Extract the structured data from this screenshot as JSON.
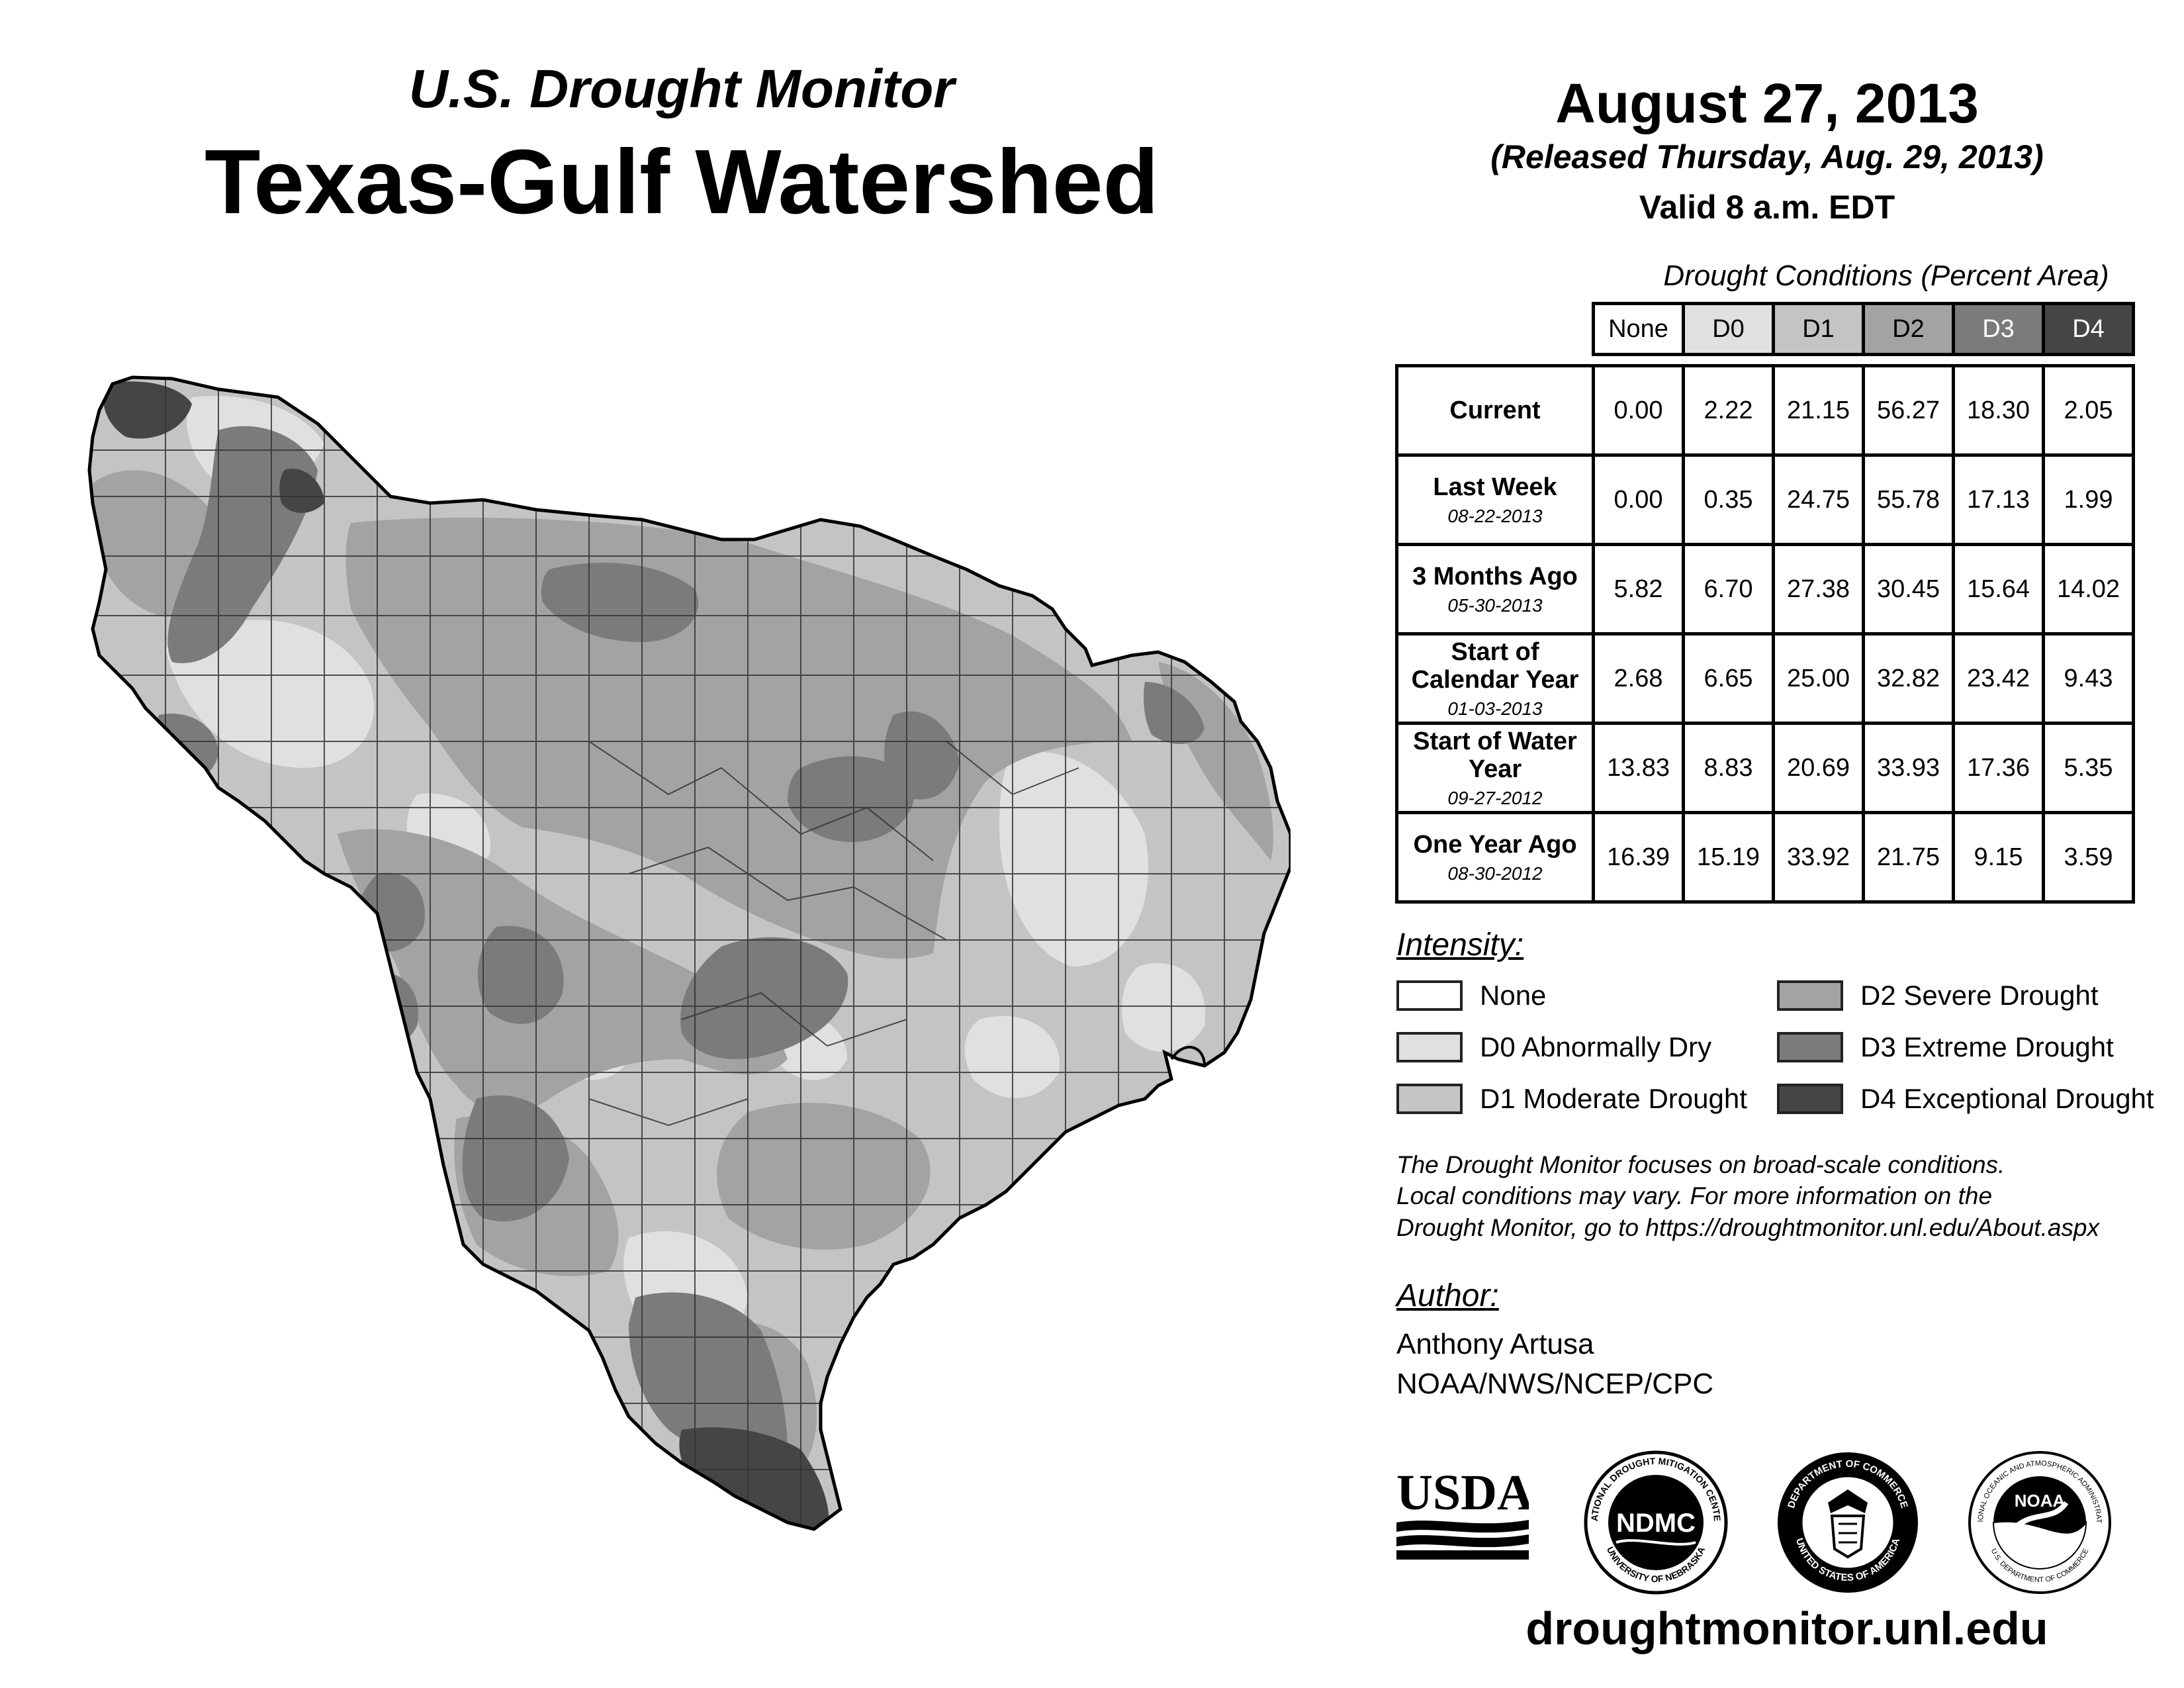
{
  "header": {
    "subtitle": "U.S. Drought Monitor",
    "title": "Texas-Gulf Watershed",
    "date": "August 27, 2013",
    "released": "(Released Thursday, Aug. 29, 2013)",
    "valid": "Valid 8 a.m. EDT"
  },
  "table": {
    "caption": "Drought Conditions (Percent Area)",
    "columns": [
      "None",
      "D0",
      "D1",
      "D2",
      "D3",
      "D4"
    ],
    "rows": [
      {
        "label": "Current",
        "date": "",
        "values": [
          "0.00",
          "2.22",
          "21.15",
          "56.27",
          "18.30",
          "2.05"
        ]
      },
      {
        "label": "Last Week",
        "date": "08-22-2013",
        "values": [
          "0.00",
          "0.35",
          "24.75",
          "55.78",
          "17.13",
          "1.99"
        ]
      },
      {
        "label": "3 Months Ago",
        "date": "05-30-2013",
        "values": [
          "5.82",
          "6.70",
          "27.38",
          "30.45",
          "15.64",
          "14.02"
        ]
      },
      {
        "label": "Start of Calendar Year",
        "date": "01-03-2013",
        "values": [
          "2.68",
          "6.65",
          "25.00",
          "32.82",
          "23.42",
          "9.43"
        ]
      },
      {
        "label": "Start of Water Year",
        "date": "09-27-2012",
        "values": [
          "13.83",
          "8.83",
          "20.69",
          "33.93",
          "17.36",
          "5.35"
        ]
      },
      {
        "label": "One Year Ago",
        "date": "08-30-2012",
        "values": [
          "16.39",
          "15.19",
          "33.92",
          "21.75",
          "9.15",
          "3.59"
        ]
      }
    ]
  },
  "legend": {
    "heading": "Intensity:",
    "items": [
      {
        "label": "None",
        "color": "#ffffff"
      },
      {
        "label": "D0 Abnormally Dry",
        "color": "#e0e0e0"
      },
      {
        "label": "D1 Moderate Drought",
        "color": "#c4c4c4"
      },
      {
        "label": "D2 Severe Drought",
        "color": "#a3a3a3"
      },
      {
        "label": "D3 Extreme Drought",
        "color": "#7b7b7b"
      },
      {
        "label": "D4 Exceptional Drought",
        "color": "#454545"
      }
    ]
  },
  "note": {
    "line1": "The Drought Monitor focuses on broad-scale conditions.",
    "line2": "Local conditions may vary. For more information on the",
    "line3": "Drought Monitor, go to https://droughtmonitor.unl.edu/About.aspx"
  },
  "author": {
    "heading": "Author:",
    "name": "Anthony Artusa",
    "org": "NOAA/NWS/NCEP/CPC"
  },
  "logos": {
    "usda": "USDA",
    "ndmc": "NDMC",
    "ndmc_ring_top": "NATIONAL DROUGHT MITIGATION CENTER",
    "ndmc_ring_bottom": "UNIVERSITY OF NEBRASKA",
    "doc_ring_top": "DEPARTMENT OF COMMERCE",
    "doc_ring_bottom": "UNITED STATES OF AMERICA",
    "noaa": "NOAA",
    "noaa_ring_top": "NATIONAL OCEANIC AND ATMOSPHERIC ADMINISTRATION",
    "noaa_ring_bottom": "U.S. DEPARTMENT OF COMMERCE"
  },
  "footer": {
    "url": "droughtmonitor.unl.edu"
  }
}
